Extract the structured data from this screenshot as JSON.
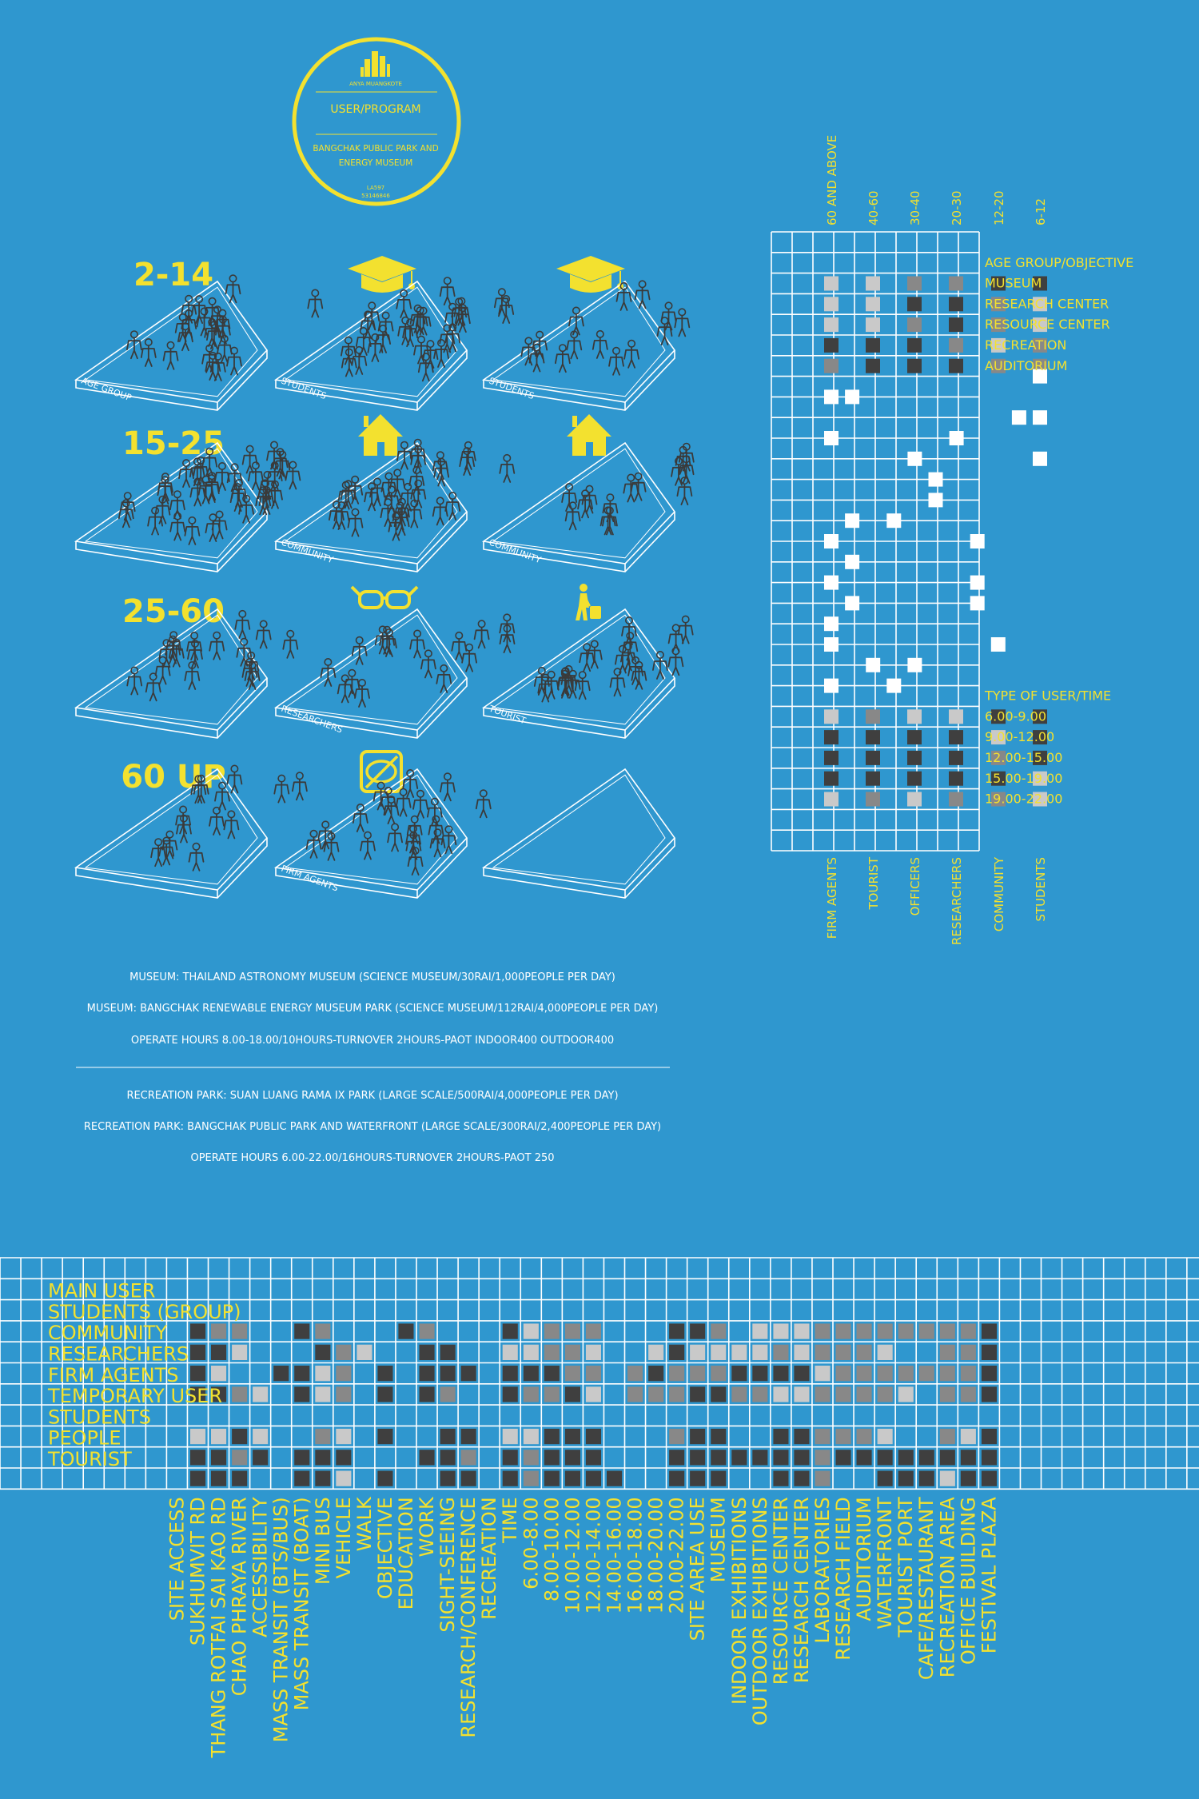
{
  "colors": {
    "background": "#2f97cf",
    "accent": "#f3e12f",
    "line": "#ffffff",
    "dark": "#3f3f3f",
    "mid": "#888888",
    "light": "#c9c9c9"
  },
  "badge": {
    "author": "ANYA MUANGKOTE",
    "title": "USER/PROGRAM",
    "subtitle1": "BANGCHAK PUBLIC PARK AND",
    "subtitle2": "ENERGY MUSEUM",
    "code1": "LA597",
    "code2": "53146846"
  },
  "age_rows": [
    {
      "label": "2-14",
      "icon": "graduation-cap-icon",
      "row_icon": "graduation-cap-icon"
    },
    {
      "label": "15-25",
      "icon": "house-icon"
    },
    {
      "label": "25-60",
      "icon": "glasses-icon"
    },
    {
      "label": "60 UP",
      "icon": "leaf-badge-icon"
    }
  ],
  "platform_labels": [
    [
      "AGE GROUP",
      "STUDENTS",
      "STUDENTS"
    ],
    [
      "",
      "COMMUNITY",
      "COMMUNITY"
    ],
    [
      "",
      "RESEARCHERS",
      "TOURIST"
    ],
    [
      "",
      "FIRM AGENTS",
      ""
    ]
  ],
  "notes": {
    "line1": "MUSEUM: THAILAND ASTRONOMY MUSEUM (SCIENCE MUSEUM/30RAI/1,000PEOPLE PER DAY)",
    "line2": "MUSEUM: BANGCHAK RENEWABLE ENERGY MUSEUM PARK (SCIENCE MUSEUM/112RAI/4,000PEOPLE PER DAY)",
    "line3": "OPERATE HOURS 8.00-18.00/10HOURS-TURNOVER 2HOURS-PAOT INDOOR400 OUTDOOR400",
    "line4": "RECREATION PARK: SUAN LUANG RAMA IX PARK (LARGE SCALE/500RAI/4,000PEOPLE PER DAY)",
    "line5": "RECREATION PARK: BANGCHAK PUBLIC PARK AND WATERFRONT (LARGE SCALE/300RAI/2,400PEOPLE PER DAY)",
    "line6": "OPERATE HOURS 6.00-22.00/16HOURS-TURNOVER 2HOURS-PAOT 250"
  },
  "right_matrix": {
    "top_labels": [
      "60 AND ABOVE",
      "40-60",
      "30-40",
      "20-30",
      "12-20",
      "6-12"
    ],
    "bottom_labels": [
      "FIRM AGENTS",
      "TOURIST",
      "OFFICERS",
      "RESEARCHERS",
      "COMMUNITY",
      "STUDENTS"
    ],
    "upper_header": "AGE GROUP/OBJECTIVE",
    "upper_rows": [
      "MUSEUM",
      "RESEARCH CENTER",
      "RESOURCE CENTER",
      "RECREATION",
      "AUDITORIUM"
    ],
    "upper_values": [
      [
        1,
        1,
        2,
        2,
        3,
        3
      ],
      [
        1,
        1,
        3,
        3,
        2,
        1
      ],
      [
        1,
        1,
        2,
        3,
        2,
        1
      ],
      [
        3,
        3,
        3,
        2,
        1,
        2
      ],
      [
        2,
        3,
        3,
        3,
        2,
        2
      ]
    ],
    "lower_header": "TYPE OF USER/TIME",
    "lower_rows": [
      "6.00-9.00",
      "9.00-12.00",
      "12.00-15.00",
      "15.00-19.00",
      "19.00-22.00"
    ],
    "lower_values": [
      [
        1,
        2,
        1,
        1,
        3,
        3
      ],
      [
        3,
        3,
        3,
        3,
        1,
        3
      ],
      [
        3,
        3,
        3,
        3,
        2,
        3
      ],
      [
        3,
        3,
        3,
        3,
        3,
        1
      ],
      [
        1,
        2,
        1,
        2,
        2,
        1
      ]
    ]
  },
  "bottom_matrix": {
    "row_labels": [
      "MAIN USER",
      "STUDENTS (GROUP)",
      "COMMUNITY",
      "RESEARCHERS",
      "FIRM AGENTS",
      "TEMPORARY USER",
      "STUDENTS",
      "PEOPLE",
      "TOURIST"
    ],
    "col_labels": [
      "SITE ACCESS",
      "SUKHUMVIT RD",
      "THANG ROTFAI SAI KAO RD",
      "CHAO PHRAYA RIVER",
      "ACCESSIBILITY",
      "MASS TRANSIT (BTS/BUS)",
      "MASS TRANSIT (BOAT)",
      "MINI BUS",
      "VEHICLE",
      "WALK",
      "OBJECTIVE",
      "EDUCATION",
      "WORK",
      "SIGHT-SEEING",
      "RESEARCH/CONFERENCE",
      "RECREATION",
      "TIME",
      "6.00-8.00",
      "8.00-10.00",
      "10.00-12.00",
      "12.00-14.00",
      "14.00-16.00",
      "16.00-18.00",
      "18.00-20.00",
      "20.00-22.00",
      "SITE AREA USE",
      "MUSEUM",
      "INDOOR EXHIBITIONS",
      "OUTDOOR EXHIBITIONS",
      "RESOURCE CENTER",
      "RESEARCH CENTER",
      "LABORATORIES",
      "RESEARCH FIELD",
      "AUDITORIUM",
      "WATERFRONT",
      "TOURIST PORT",
      "CAFE/RESTAURANT",
      "RECREATION AREA",
      "OFFICE BUILDING",
      "FESTIVAL PLAZA"
    ],
    "rows": [
      "0000000000000000000000000000000000000000",
      "0322003200032000312220003320111222222223",
      "0331000321003300112210013111121222100223",
      "0310033120303330333220232223333122222223",
      "0332103120303200322310222332211222210223",
      "0000000000000000000000000000000000000000",
      "0113100210300330113330002330033222100213",
      "0332303330003320323330003333333233333333",
      "0333003310300330323333003330033200333133"
    ]
  }
}
